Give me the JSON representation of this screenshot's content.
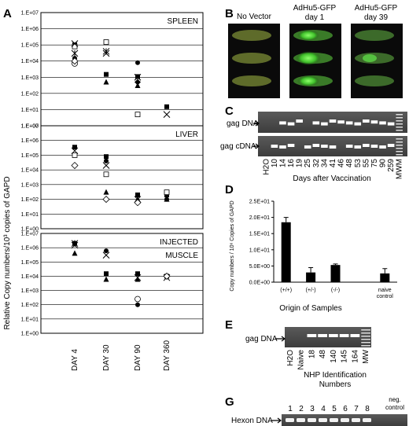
{
  "panels": {
    "A": "A",
    "B": "B",
    "C": "C",
    "D": "D",
    "E": "E",
    "G": "G"
  },
  "panel_A": {
    "ylabel": "Relative Copy numbers/10³ copies of GAPD",
    "x_labels": [
      "DAY 4",
      "DAY 30",
      "DAY 90",
      "DAY 360"
    ],
    "y_ticks": [
      "1.E+07",
      "1.E+06",
      "1.E+05",
      "1.E+04",
      "1.E+03",
      "1.E+02",
      "1.E+01",
      "1.E+00"
    ],
    "subplots": [
      {
        "title": "SPLEEN",
        "title2": ""
      },
      {
        "title": "LIVER",
        "title2": ""
      },
      {
        "title": "INJECTED",
        "title2": "MUSCLE"
      }
    ]
  },
  "panel_B": {
    "labels": [
      {
        "line1": "No Vector",
        "line2": ""
      },
      {
        "line1": "AdHu5-GFP",
        "line2": "day 1"
      },
      {
        "line1": "AdHu5-GFP",
        "line2": "day 39"
      }
    ]
  },
  "panel_C": {
    "row1": "gag DNA",
    "row2": "gag cDNA",
    "lanes": [
      "H2O",
      "10",
      "14",
      "16",
      "19",
      "25",
      "32",
      "34",
      "41",
      "46",
      "48",
      "53",
      "55",
      "75",
      "90",
      "259",
      "MWM"
    ],
    "xlabel": "Days after Vaccination"
  },
  "panel_E": {
    "row": "gag DNA",
    "lanes": [
      "H2O",
      "Naive",
      "18",
      "48",
      "140",
      "145",
      "164",
      "MW"
    ],
    "xlabel1": "NHP Identification",
    "xlabel2": "Numbers"
  },
  "panel_G": {
    "row": "Hexon DNA",
    "lanes": [
      "1",
      "2",
      "3",
      "4",
      "5",
      "6",
      "7",
      "8"
    ],
    "neg1": "neg.",
    "neg2": "control"
  },
  "chart_data": [
    {
      "type": "scatter",
      "panel": "A",
      "subplot": "SPLEEN",
      "log_y": true,
      "ylim": [
        1,
        10000000
      ],
      "categories": [
        "DAY 4",
        "DAY 30",
        "DAY 90",
        "DAY 360"
      ],
      "series": [
        {
          "marker": "filled-square",
          "values": [
            100000,
            1500,
            1100,
            15
          ]
        },
        {
          "marker": "open-square",
          "values": [
            80000,
            150000,
            5,
            null
          ]
        },
        {
          "marker": "x",
          "values": [
            120000,
            30000,
            1000,
            5
          ]
        },
        {
          "marker": "asterisk",
          "values": [
            30000,
            40000,
            null,
            null
          ]
        },
        {
          "marker": "filled-circle",
          "values": [
            15000,
            null,
            8000,
            null
          ]
        },
        {
          "marker": "open-circle",
          "values": [
            7000,
            null,
            null,
            null
          ]
        },
        {
          "marker": "filled-triangle",
          "values": [
            null,
            500,
            300,
            null
          ]
        },
        {
          "marker": "filled-diamond",
          "values": [
            null,
            null,
            500,
            null
          ]
        },
        {
          "marker": "open-diamond",
          "values": [
            10000,
            null,
            null,
            null
          ]
        }
      ]
    },
    {
      "type": "scatter",
      "panel": "A",
      "subplot": "LIVER",
      "log_y": true,
      "ylim": [
        1,
        10000000
      ],
      "categories": [
        "DAY 4",
        "DAY 30",
        "DAY 90",
        "DAY 360"
      ],
      "series": [
        {
          "marker": "filled-square",
          "values": [
            350000,
            80000,
            200,
            200
          ]
        },
        {
          "marker": "open-square",
          "values": [
            100000,
            5000,
            null,
            300
          ]
        },
        {
          "marker": "x",
          "values": [
            200000,
            20000,
            100,
            null
          ]
        },
        {
          "marker": "filled-circle",
          "values": [
            null,
            40000,
            null,
            100
          ]
        },
        {
          "marker": "filled-triangle",
          "values": [
            null,
            300,
            100,
            100
          ]
        },
        {
          "marker": "open-diamond",
          "values": [
            20000,
            100,
            60,
            null
          ]
        }
      ]
    },
    {
      "type": "scatter",
      "panel": "A",
      "subplot": "INJECTED MUSCLE",
      "log_y": true,
      "ylim": [
        1,
        10000000
      ],
      "categories": [
        "DAY 4",
        "DAY 30",
        "DAY 90",
        "DAY 360"
      ],
      "series": [
        {
          "marker": "filled-square",
          "values": [
            2000000,
            15000,
            15000,
            10000
          ]
        },
        {
          "marker": "x",
          "values": [
            1500000,
            300000,
            8000,
            8000
          ]
        },
        {
          "marker": "asterisk",
          "values": [
            2000000,
            null,
            null,
            null
          ]
        },
        {
          "marker": "filled-circle",
          "values": [
            null,
            600000,
            100,
            null
          ]
        },
        {
          "marker": "open-circle",
          "values": [
            null,
            null,
            250,
            null
          ]
        },
        {
          "marker": "filled-triangle",
          "values": [
            400000,
            6000,
            6000,
            null
          ]
        },
        {
          "marker": "open-diamond",
          "values": [
            null,
            null,
            null,
            10000
          ]
        }
      ]
    },
    {
      "type": "bar",
      "panel": "D",
      "title": "",
      "categories": [
        "(+/+)",
        "(+/-)",
        "(-/-)",
        "",
        "naive control"
      ],
      "values": [
        18.5,
        3.0,
        5.3,
        null,
        2.7
      ],
      "errors": [
        1.5,
        1.5,
        0.3,
        null,
        1.5
      ],
      "ylim": [
        0,
        25
      ],
      "y_ticks": [
        "0.0E+00",
        "5.0E+00",
        "1.0E+01",
        "1.5E+01",
        "2.0E+01",
        "2.5E+01"
      ],
      "ylabel": "Copy numbers / 10⁶ Copies of GAPD",
      "xlabel": "Origin of Samples"
    }
  ]
}
